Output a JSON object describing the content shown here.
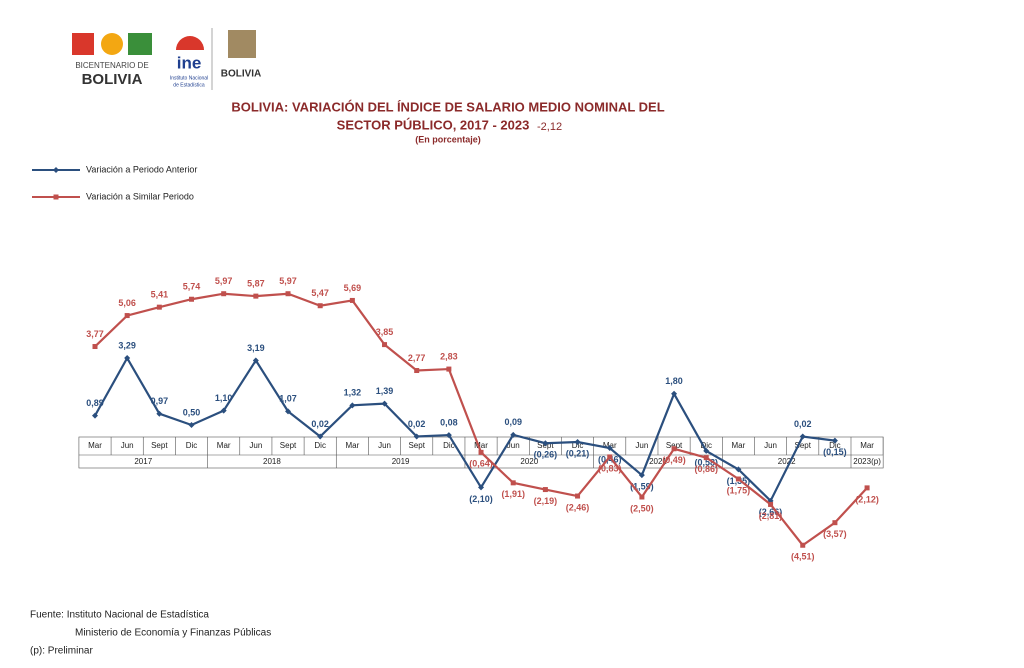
{
  "header": {
    "logo_left_line1": "BICENTENARIO DE",
    "logo_left_line2": "BOLIVIA",
    "logo_ine": "ine",
    "logo_ine_sub1": "Instituto Nacional",
    "logo_ine_sub2": "de Estadística",
    "logo_right": "BOLIVIA"
  },
  "chart_data": {
    "type": "line",
    "title_line1": "BOLIVIA: VARIACIÓN DEL ÍNDICE DE SALARIO MEDIO NOMINAL DEL",
    "title_line2": "SECTOR PÚBLICO,  2017 - 2023",
    "title_suffix": "-2,12",
    "subtitle": "(En porcentaje)",
    "categories": [
      "Mar",
      "Jun",
      "Sept",
      "Dic",
      "Mar",
      "Jun",
      "Sept",
      "Dic",
      "Mar",
      "Jun",
      "Sept",
      "Dic",
      "Mar",
      "Jun",
      "Sept",
      "Dic",
      "Mar",
      "Jun",
      "Sept",
      "Dic",
      "Mar",
      "Jun",
      "Sept",
      "Dic",
      "Mar"
    ],
    "year_groups": [
      "2017",
      "2018",
      "2019",
      "2020",
      "2021",
      "2022",
      "2023(p)"
    ],
    "ylim": [
      -6,
      7
    ],
    "series": [
      {
        "name": "Variación a Periodo Anterior",
        "color": "#2b4f7e",
        "marker": "diamond",
        "values": [
          0.89,
          3.29,
          0.97,
          0.5,
          1.1,
          3.19,
          1.07,
          0.02,
          1.32,
          1.39,
          0.02,
          0.08,
          -2.1,
          0.09,
          -0.26,
          -0.21,
          -0.46,
          -1.59,
          1.8,
          -0.58,
          -1.35,
          -2.66,
          0.02,
          -0.15,
          null
        ],
        "value_labels": [
          "0,89",
          "3,29",
          "0,97",
          "0,50",
          "1,10",
          "3,19",
          "1,07",
          "0,02",
          "1,32",
          "1,39",
          "0,02",
          "0,08",
          "(2,10)",
          "0,09",
          "(0,26)",
          "(0,21)",
          "(0,46)",
          "(1,59)",
          "1,80",
          "(0,58)",
          "(1,35)",
          "(2,66)",
          "0,02",
          "(0,15)",
          null
        ]
      },
      {
        "name": "Variación a Similar Periodo",
        "color": "#c0504d",
        "marker": "square",
        "values": [
          3.77,
          5.06,
          5.41,
          5.74,
          5.97,
          5.87,
          5.97,
          5.47,
          5.69,
          3.85,
          2.77,
          2.83,
          -0.64,
          -1.91,
          -2.19,
          -2.46,
          -0.83,
          -2.5,
          -0.49,
          -0.86,
          -1.75,
          -2.81,
          -4.51,
          -3.57,
          -2.12
        ],
        "value_labels": [
          "3,77",
          "5,06",
          "5,41",
          "5,74",
          "5,97",
          "5,87",
          "5,97",
          "5,47",
          "5,69",
          "3,85",
          "2,77",
          "2,83",
          "(0,64)",
          "(1,91)",
          "(2,19)",
          "(2,46)",
          "(0,83)",
          "(2,50)",
          "(0,49)",
          "(0,86)",
          "(1,75)",
          "(2,81)",
          "(4,51)",
          "(3,57)",
          "(2,12)"
        ]
      }
    ]
  },
  "footer": {
    "source": "Fuente: Instituto Nacional de Estadística",
    "source2": "Ministerio de Economía y Finanzas Públicas",
    "note": "(p): Preliminar"
  }
}
